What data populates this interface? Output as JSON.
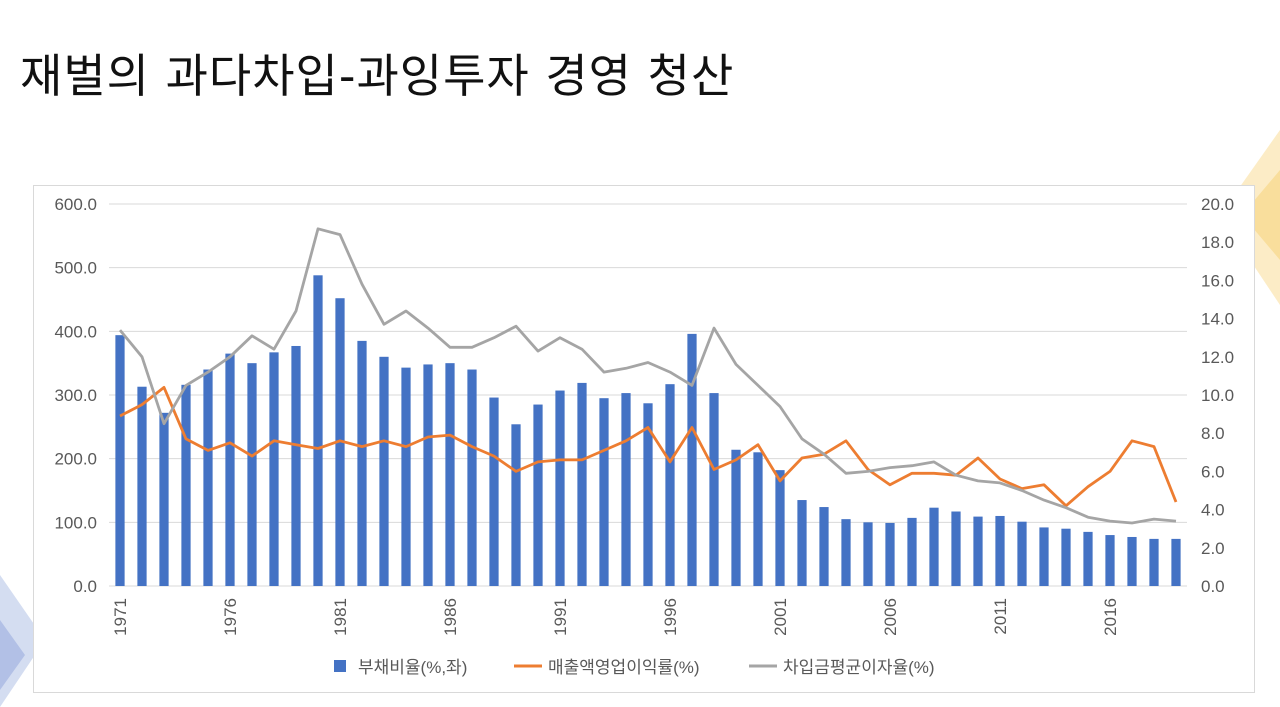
{
  "slide": {
    "title": "재벌의 과다차입-과잉투자 경영 청산"
  },
  "colors": {
    "bar": "#4472C4",
    "line1": "#ED7D31",
    "line2": "#A5A5A5",
    "grid": "#d9d9d9",
    "text": "#595959"
  },
  "chart_data": {
    "type": "bar",
    "years": [
      1971,
      1972,
      1973,
      1974,
      1975,
      1976,
      1977,
      1978,
      1979,
      1980,
      1981,
      1982,
      1983,
      1984,
      1985,
      1986,
      1987,
      1988,
      1989,
      1990,
      1991,
      1992,
      1993,
      1994,
      1995,
      1996,
      1997,
      1998,
      1999,
      2000,
      2001,
      2002,
      2003,
      2004,
      2005,
      2006,
      2007,
      2008,
      2009,
      2010,
      2011,
      2012,
      2013,
      2014,
      2015,
      2016,
      2017,
      2018,
      2019
    ],
    "x_tick_labels": [
      "1971",
      "1976",
      "1981",
      "1986",
      "1991",
      "1996",
      "2001",
      "2006",
      "2011",
      "2016"
    ],
    "y_left_ticks": [
      "0.0",
      "100.0",
      "200.0",
      "300.0",
      "400.0",
      "500.0",
      "600.0"
    ],
    "y_right_ticks": [
      "0.0",
      "2.0",
      "4.0",
      "6.0",
      "8.0",
      "10.0",
      "12.0",
      "14.0",
      "16.0",
      "18.0",
      "20.0"
    ],
    "ylim_left": [
      0,
      600
    ],
    "ylim_right": [
      0,
      20
    ],
    "grid": true,
    "legend_position": "bottom",
    "series": [
      {
        "name": "부채비율(%,좌)",
        "type": "bar",
        "axis": "left",
        "values": [
          394,
          313,
          272,
          316,
          340,
          365,
          350,
          367,
          377,
          488,
          452,
          385,
          360,
          343,
          348,
          350,
          340,
          296,
          254,
          285,
          307,
          319,
          295,
          303,
          287,
          317,
          396,
          303,
          214,
          210,
          182,
          135,
          124,
          105,
          100,
          99,
          107,
          123,
          117,
          109,
          110,
          101,
          92,
          90,
          85,
          80,
          77,
          74,
          74
        ]
      },
      {
        "name": "매출액영업이익률(%)",
        "type": "line",
        "axis": "right",
        "values": [
          8.9,
          9.5,
          10.4,
          7.7,
          7.1,
          7.5,
          6.8,
          7.6,
          7.4,
          7.2,
          7.6,
          7.3,
          7.6,
          7.3,
          7.8,
          7.9,
          7.3,
          6.8,
          6.0,
          6.5,
          6.6,
          6.6,
          7.1,
          7.6,
          8.3,
          6.5,
          8.3,
          6.1,
          6.6,
          7.4,
          5.5,
          6.7,
          6.9,
          7.6,
          6.1,
          5.3,
          5.9,
          5.9,
          5.8,
          6.7,
          5.6,
          5.1,
          5.3,
          4.2,
          5.2,
          6.0,
          7.6,
          7.3,
          4.4
        ]
      },
      {
        "name": "차입금평균이자율(%)",
        "type": "line",
        "axis": "right",
        "values": [
          13.4,
          12.0,
          8.5,
          10.5,
          11.2,
          12.0,
          13.1,
          12.4,
          14.4,
          18.7,
          18.4,
          15.8,
          13.7,
          14.4,
          13.5,
          12.5,
          12.5,
          13.0,
          13.6,
          12.3,
          13.0,
          12.4,
          11.2,
          11.4,
          11.7,
          11.2,
          10.5,
          13.5,
          11.6,
          10.5,
          9.4,
          7.7,
          6.9,
          5.9,
          6.0,
          6.2,
          6.3,
          6.5,
          5.8,
          5.5,
          5.4,
          5.0,
          4.5,
          4.1,
          3.6,
          3.4,
          3.3,
          3.5,
          3.4
        ]
      }
    ]
  }
}
